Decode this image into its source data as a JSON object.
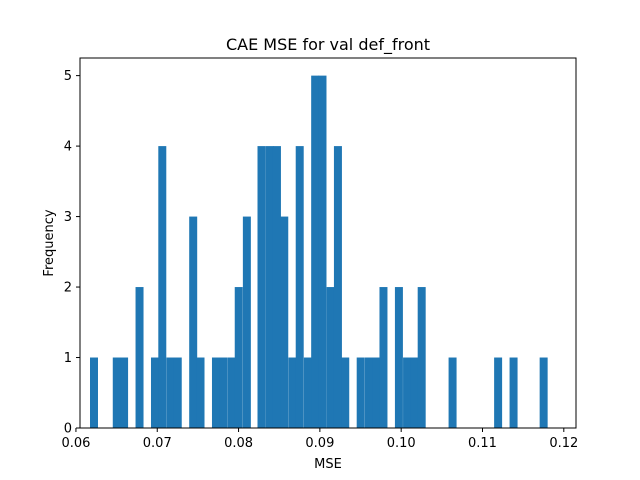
{
  "chart_data": {
    "type": "bar",
    "title": "CAE MSE for val def_front",
    "xlabel": "MSE",
    "ylabel": "Frequency",
    "xlim": [
      0.0605,
      0.1215
    ],
    "ylim": [
      0,
      5.25
    ],
    "bin_width": 0.00094,
    "bar_color": "#1f77b4",
    "x_ticks": [
      0.06,
      0.07,
      0.08,
      0.09,
      0.1,
      0.11,
      0.12
    ],
    "x_tick_labels": [
      "0.06",
      "0.07",
      "0.08",
      "0.09",
      "0.10",
      "0.11",
      "0.12"
    ],
    "y_ticks": [
      0,
      1,
      2,
      3,
      4,
      5
    ],
    "y_tick_labels": [
      "0",
      "1",
      "2",
      "3",
      "4",
      "5"
    ],
    "grid": false,
    "bins": [
      {
        "x": 0.0622,
        "count": 1
      },
      {
        "x": 0.065,
        "count": 1
      },
      {
        "x": 0.0659,
        "count": 1
      },
      {
        "x": 0.0678,
        "count": 2
      },
      {
        "x": 0.0697,
        "count": 1
      },
      {
        "x": 0.0706,
        "count": 4
      },
      {
        "x": 0.0716,
        "count": 1
      },
      {
        "x": 0.0725,
        "count": 1
      },
      {
        "x": 0.0744,
        "count": 3
      },
      {
        "x": 0.0753,
        "count": 1
      },
      {
        "x": 0.0772,
        "count": 1
      },
      {
        "x": 0.0781,
        "count": 1
      },
      {
        "x": 0.0791,
        "count": 1
      },
      {
        "x": 0.08,
        "count": 2
      },
      {
        "x": 0.081,
        "count": 3
      },
      {
        "x": 0.0828,
        "count": 4
      },
      {
        "x": 0.0838,
        "count": 4
      },
      {
        "x": 0.0847,
        "count": 4
      },
      {
        "x": 0.0856,
        "count": 3
      },
      {
        "x": 0.0866,
        "count": 1
      },
      {
        "x": 0.0875,
        "count": 4
      },
      {
        "x": 0.0885,
        "count": 1
      },
      {
        "x": 0.0894,
        "count": 5
      },
      {
        "x": 0.0903,
        "count": 5
      },
      {
        "x": 0.0913,
        "count": 2
      },
      {
        "x": 0.0922,
        "count": 4
      },
      {
        "x": 0.0931,
        "count": 1
      },
      {
        "x": 0.095,
        "count": 1
      },
      {
        "x": 0.096,
        "count": 1
      },
      {
        "x": 0.0969,
        "count": 1
      },
      {
        "x": 0.0978,
        "count": 2
      },
      {
        "x": 0.0997,
        "count": 2
      },
      {
        "x": 0.1007,
        "count": 1
      },
      {
        "x": 0.1016,
        "count": 1
      },
      {
        "x": 0.1025,
        "count": 2
      },
      {
        "x": 0.1063,
        "count": 1
      },
      {
        "x": 0.1119,
        "count": 1
      },
      {
        "x": 0.1138,
        "count": 1
      },
      {
        "x": 0.1175,
        "count": 1
      }
    ]
  }
}
